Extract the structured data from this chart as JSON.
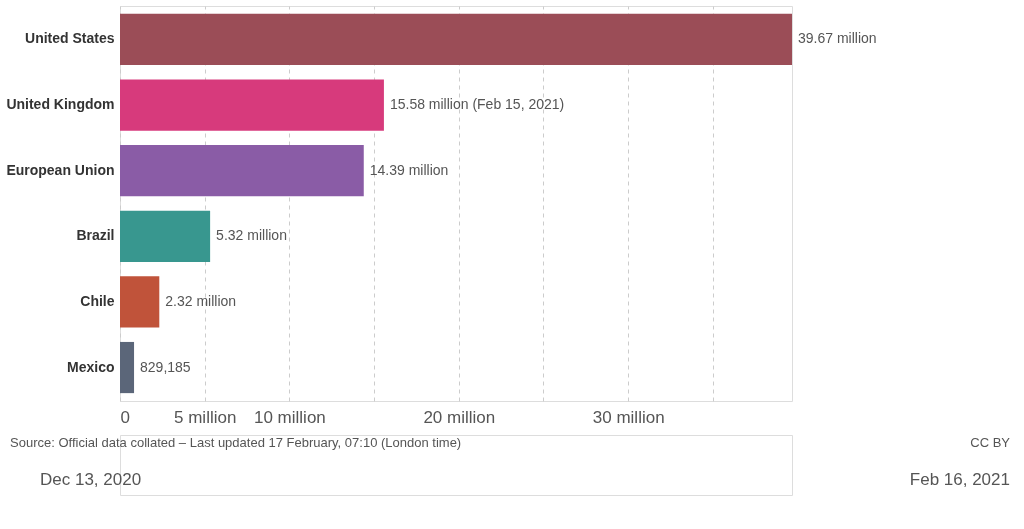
{
  "chart_data": {
    "type": "bar",
    "orientation": "horizontal",
    "categories": [
      "United States",
      "United Kingdom",
      "European Union",
      "Brazil",
      "Chile",
      "Mexico"
    ],
    "values": [
      39670000,
      15580000,
      14390000,
      5320000,
      2320000,
      829185
    ],
    "colors": [
      "#9b4d57",
      "#d73a7c",
      "#8a5ca6",
      "#38978f",
      "#c0533a",
      "#5b6679"
    ],
    "value_labels": [
      "39.67 million",
      "15.58 million (Feb 15, 2021)",
      "14.39 million",
      "5.32 million",
      "2.32 million",
      "829,185"
    ],
    "xlim": [
      0,
      39670000
    ],
    "xticks": [
      0,
      {
        "value": 5000000,
        "label": "5 million"
      },
      {
        "value": 10000000,
        "label": "10 million"
      },
      {
        "value": 15000000,
        "label": null
      },
      {
        "value": 20000000,
        "label": "20 million"
      },
      {
        "value": 25000000,
        "label": null
      },
      {
        "value": 30000000,
        "label": "30 million"
      },
      {
        "value": 35000000,
        "label": null
      }
    ],
    "grid": "x",
    "annotations": [
      "Source: Official data collated – Last updated 17 February, 07:10 (London time)",
      "CC BY",
      "Dec 13, 2020",
      "Feb 16, 2021"
    ]
  }
}
